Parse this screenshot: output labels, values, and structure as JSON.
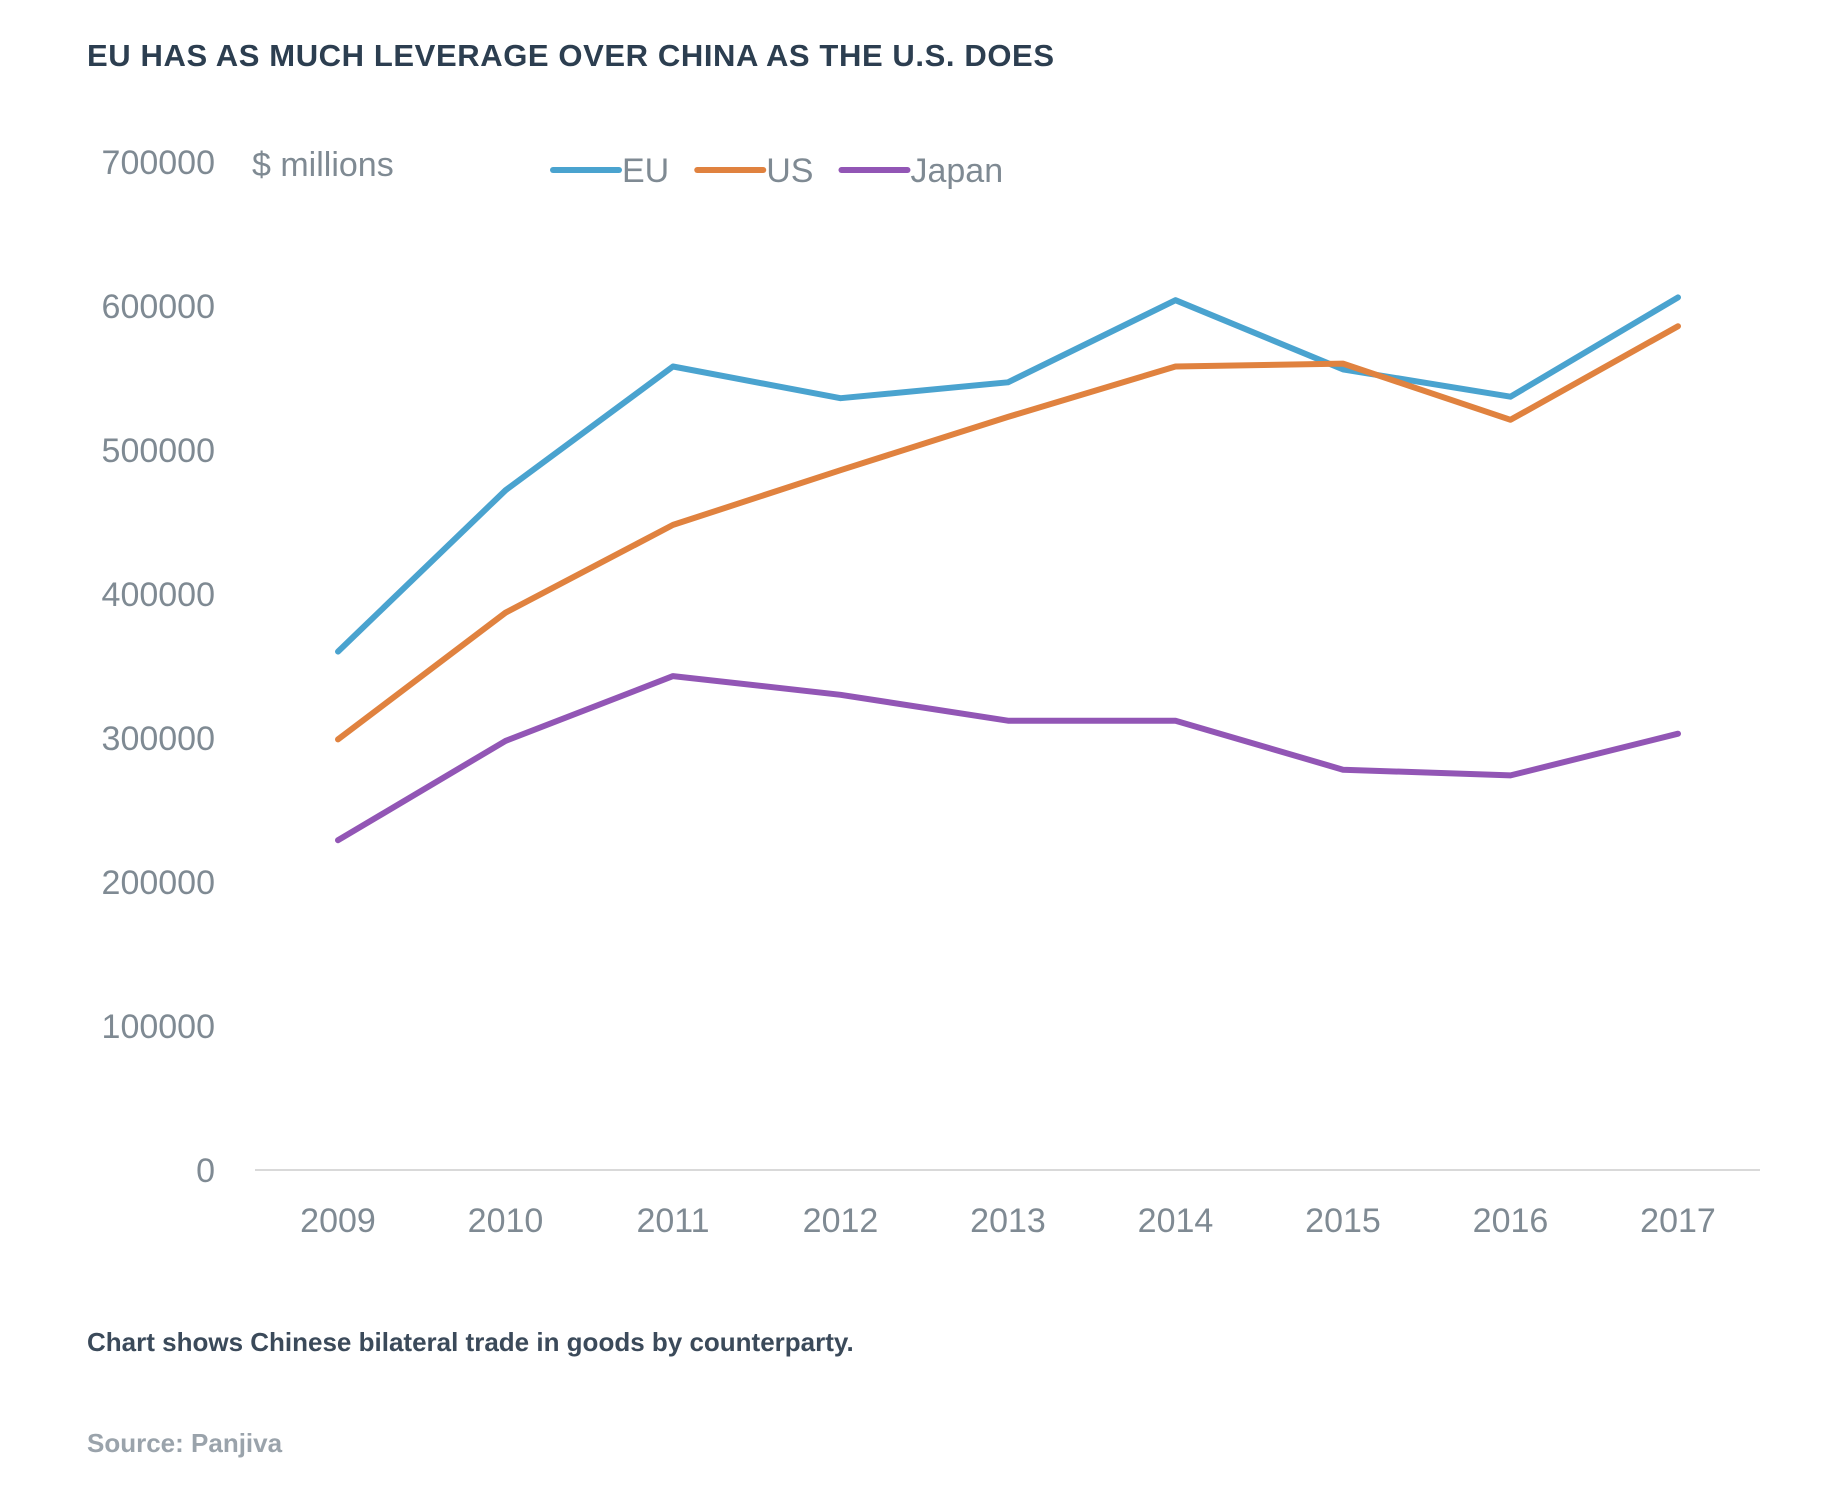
{
  "chart_data": {
    "type": "line",
    "title": "EU HAS AS MUCH LEVERAGE OVER CHINA AS THE U.S. DOES",
    "ylabel": "$ millions",
    "xlabel": "",
    "x": [
      "2009",
      "2010",
      "2011",
      "2012",
      "2013",
      "2014",
      "2015",
      "2016",
      "2017"
    ],
    "yticks": [
      "0",
      "100000",
      "200000",
      "300000",
      "400000",
      "500000",
      "600000",
      "700000"
    ],
    "ylim": [
      0,
      700000
    ],
    "grid": false,
    "legend": "top",
    "series": [
      {
        "name": "EU",
        "color": "#4aa3cf",
        "values": [
          360000,
          472000,
          558000,
          536000,
          547000,
          604000,
          556000,
          537000,
          606000
        ]
      },
      {
        "name": "US",
        "color": "#e0823f",
        "values": [
          299000,
          387000,
          448000,
          486000,
          523000,
          558000,
          560000,
          521000,
          586000
        ]
      },
      {
        "name": "Japan",
        "color": "#9256b5",
        "values": [
          229000,
          298000,
          343000,
          330000,
          312000,
          312000,
          278000,
          274000,
          303000
        ]
      }
    ]
  },
  "caption": "Chart shows Chinese bilateral trade in goods by counterparty.",
  "source": "Source: Panjiva"
}
